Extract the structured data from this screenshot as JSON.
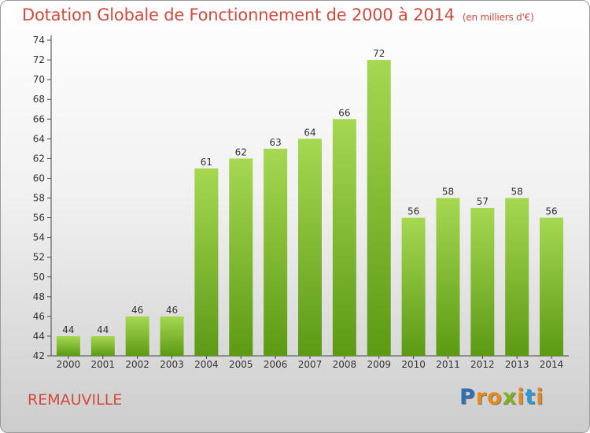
{
  "header": {
    "title": "Dotation Globale de Fonctionnement de 2000 à 2014",
    "unit": "(en milliers d'€)"
  },
  "footer": {
    "commune": "REMAUVILLE",
    "logo": {
      "letters": [
        "P",
        "r",
        "o",
        "x",
        "i",
        "t",
        "i"
      ],
      "colors": [
        "#2f6fb5",
        "#e48a1e",
        "#e48a1e",
        "#7fb21c",
        "#e48a1e",
        "#2f9ad1",
        "#e48a1e"
      ]
    }
  },
  "chart_data": {
    "type": "bar",
    "categories": [
      "2000",
      "2001",
      "2002",
      "2003",
      "2004",
      "2005",
      "2006",
      "2007",
      "2008",
      "2009",
      "2010",
      "2011",
      "2012",
      "2013",
      "2014"
    ],
    "values": [
      44,
      44,
      46,
      46,
      61,
      62,
      63,
      64,
      66,
      72,
      56,
      58,
      57,
      58,
      56
    ],
    "ylim": [
      42,
      74
    ],
    "yticks": [
      42,
      44,
      46,
      48,
      50,
      52,
      54,
      56,
      58,
      60,
      62,
      64,
      66,
      68,
      70,
      72,
      74
    ],
    "grid": false,
    "bar_color_top": "#a6d852",
    "bar_color_bottom": "#5c9a14",
    "data_labels": true
  }
}
